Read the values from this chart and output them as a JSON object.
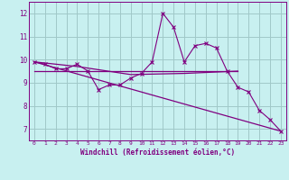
{
  "xlabel": "Windchill (Refroidissement éolien,°C)",
  "ylabel": "",
  "background_color": "#c8f0f0",
  "line_color": "#800080",
  "grid_color": "#a0c8c8",
  "xlim": [
    -0.5,
    23.5
  ],
  "ylim": [
    6.5,
    12.5
  ],
  "yticks": [
    7,
    8,
    9,
    10,
    11,
    12
  ],
  "xticks": [
    0,
    1,
    2,
    3,
    4,
    5,
    6,
    7,
    8,
    9,
    10,
    11,
    12,
    13,
    14,
    15,
    16,
    17,
    18,
    19,
    20,
    21,
    22,
    23
  ],
  "main_line_x": [
    0,
    1,
    2,
    3,
    4,
    5,
    6,
    7,
    8,
    9,
    10,
    11,
    12,
    13,
    14,
    15,
    16,
    17,
    18,
    19,
    20,
    21,
    22,
    23
  ],
  "main_line_y": [
    9.9,
    9.8,
    9.6,
    9.6,
    9.8,
    9.5,
    8.7,
    8.9,
    8.9,
    9.2,
    9.4,
    9.9,
    12.0,
    11.4,
    9.9,
    10.6,
    10.7,
    10.5,
    9.5,
    8.8,
    8.6,
    7.8,
    7.4,
    6.9
  ],
  "trend_line_x": [
    0,
    23
  ],
  "trend_line_y": [
    9.9,
    6.9
  ],
  "horiz_line_x": [
    0,
    19
  ],
  "horiz_line_y": [
    9.5,
    9.5
  ],
  "avg_line_x": [
    0,
    4,
    9,
    14,
    19
  ],
  "avg_line_y": [
    9.9,
    9.7,
    9.35,
    9.4,
    9.5
  ]
}
